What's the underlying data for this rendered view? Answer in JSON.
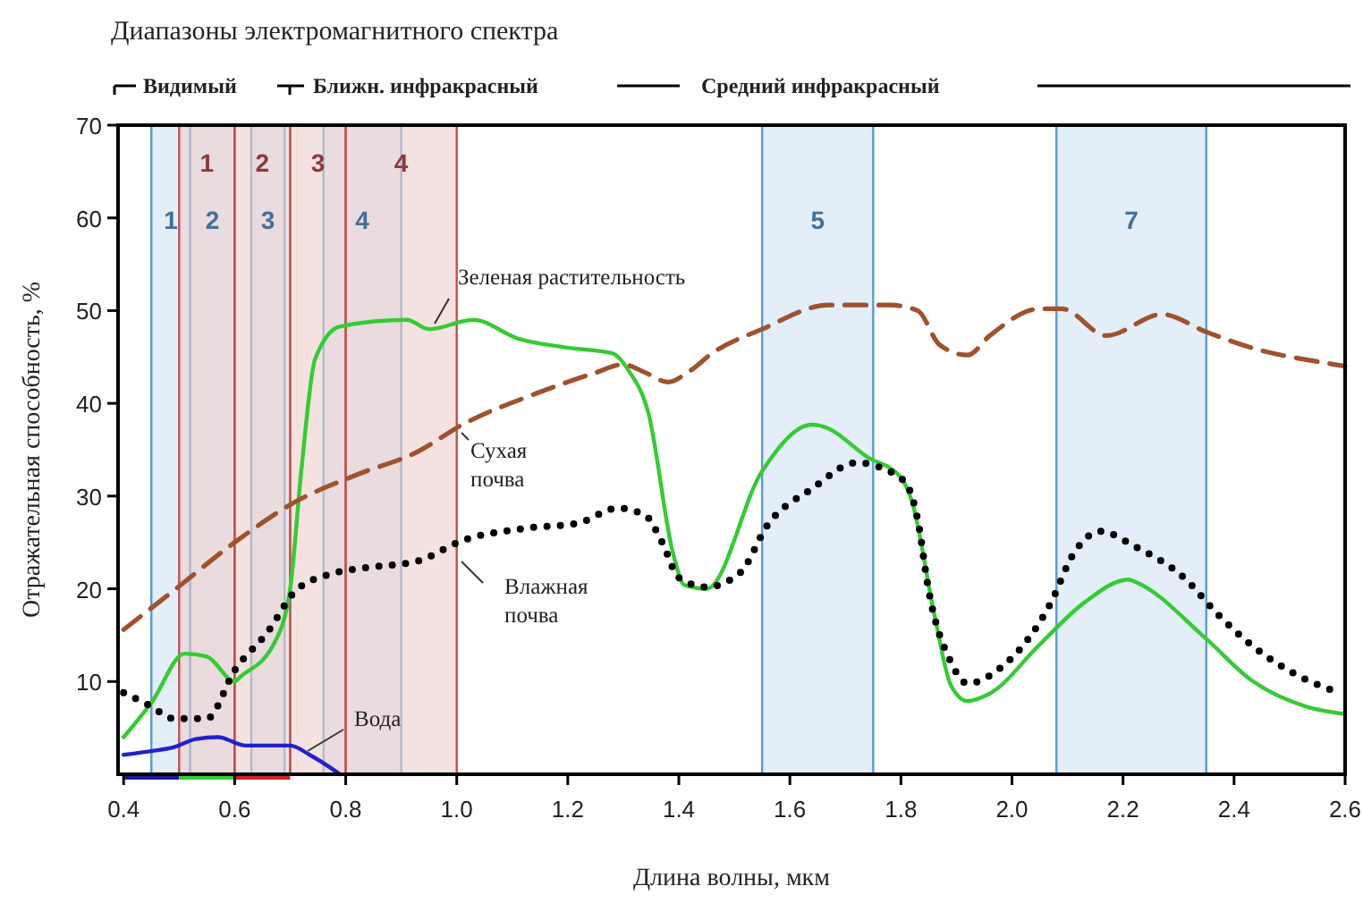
{
  "chart_data": {
    "type": "line",
    "title": "Диапазоны электромагнитного спектра",
    "xlabel": "Длина волны, мкм",
    "ylabel": "Отражательная способность, %",
    "annotations": [
      "Видимый",
      "Ближн. инфракрасный",
      "Средний инфракрасный"
    ],
    "xlim": [
      0.39,
      2.6
    ],
    "ylim": [
      0,
      70
    ],
    "xticks": [
      0.4,
      0.6,
      0.8,
      {
        "value": 1.0,
        "label": "1.0"
      },
      1.2,
      1.4,
      1.6,
      1.8,
      {
        "value": 2.0,
        "label": "2.0"
      },
      2.2,
      2.4,
      2.6
    ],
    "yticks": [
      10,
      20,
      30,
      40,
      50,
      60,
      70
    ],
    "grid": false,
    "marker": "none",
    "bands": [
      {
        "axis": "x",
        "from": 0.45,
        "to": 0.52,
        "label": "1",
        "color": "#5b9bd5"
      },
      {
        "axis": "x",
        "from": 0.52,
        "to": 0.6,
        "label": "2",
        "color": "#5b9bd5"
      },
      {
        "axis": "x",
        "from": 0.63,
        "to": 0.69,
        "label": "3",
        "color": "#5b9bd5"
      },
      {
        "axis": "x",
        "from": 0.76,
        "to": 0.9,
        "label": "4",
        "color": "#5b9bd5"
      },
      {
        "axis": "x",
        "from": 1.55,
        "to": 1.75,
        "label": "5",
        "color": "#5b9bd5"
      },
      {
        "axis": "x",
        "from": 2.08,
        "to": 2.35,
        "label": "7",
        "color": "#5b9bd5"
      },
      {
        "axis": "x",
        "from": 0.5,
        "to": 0.6,
        "label": "1",
        "color": "#c0504d"
      },
      {
        "axis": "x",
        "from": 0.6,
        "to": 0.7,
        "label": "2",
        "color": "#c0504d"
      },
      {
        "axis": "x",
        "from": 0.7,
        "to": 0.8,
        "label": "3",
        "color": "#c0504d"
      },
      {
        "axis": "x",
        "from": 0.8,
        "to": 1.0,
        "label": "4",
        "color": "#c0504d"
      }
    ],
    "series": [
      {
        "name": "Зеленая растительность",
        "color": "#33cc33",
        "line_style": "solid",
        "x": [
          0.4,
          0.45,
          0.51,
          0.55,
          0.6,
          0.61,
          0.67,
          0.7,
          0.72,
          0.745,
          0.79,
          0.91,
          0.95,
          1.03,
          1.11,
          1.2,
          1.28,
          1.31,
          1.345,
          1.39,
          1.41,
          1.45,
          1.55,
          1.64,
          1.66,
          1.74,
          1.8,
          1.82,
          1.86,
          1.89,
          1.92,
          1.96,
          2.05,
          2.13,
          2.21,
          2.22,
          2.35,
          2.43,
          2.53,
          2.6
        ],
        "values": [
          4,
          7.7,
          13,
          12.7,
          10,
          10.5,
          14,
          20,
          32.7,
          44.8,
          48.3,
          49,
          48,
          49,
          47,
          46,
          45.4,
          43.5,
          39,
          23.7,
          20.4,
          20,
          32.7,
          37.7,
          37.5,
          34.2,
          32,
          29.4,
          17.3,
          9.6,
          7.9,
          8.7,
          14,
          18.5,
          21,
          20.8,
          14.6,
          10.2,
          7.3,
          6.5
        ]
      },
      {
        "name": "Сухая почва",
        "color": "#a0522d",
        "line_style": "dashed",
        "x": [
          0.4,
          0.49,
          0.6,
          0.71,
          0.82,
          0.93,
          1.01,
          1.14,
          1.25,
          1.3,
          1.34,
          1.38,
          1.42,
          1.46,
          1.55,
          1.67,
          1.78,
          1.83,
          1.87,
          1.92,
          1.96,
          2.05,
          2.09,
          2.17,
          2.27,
          2.35,
          2.42,
          2.58,
          2.6
        ],
        "values": [
          15.6,
          19.8,
          25,
          29.4,
          32.3,
          34.8,
          37.7,
          41,
          43.3,
          44.2,
          43.3,
          42.3,
          43.5,
          45.4,
          48,
          50.6,
          50.6,
          50,
          46.3,
          45.2,
          47.3,
          50.2,
          50.2,
          47.3,
          49.6,
          47.7,
          46.2,
          44.2,
          44
        ]
      },
      {
        "name": "Влажная почва",
        "color": "#000000",
        "line_style": "dotted",
        "x": [
          0.4,
          0.45,
          0.49,
          0.55,
          0.6,
          0.66,
          0.71,
          0.78,
          0.84,
          0.93,
          1.01,
          1.12,
          1.22,
          1.29,
          1.34,
          1.37,
          1.4,
          1.45,
          1.51,
          1.56,
          1.64,
          1.72,
          1.77,
          1.81,
          1.83,
          1.85,
          1.89,
          1.92,
          1.98,
          2.07,
          2.11,
          2.16,
          2.22,
          2.31,
          2.37,
          2.43,
          2.53,
          2.59
        ],
        "values": [
          8.8,
          7.3,
          6,
          6,
          11.2,
          15.4,
          19.8,
          21.7,
          22.3,
          23,
          25.2,
          26.5,
          27.1,
          28.7,
          27.9,
          25,
          21.2,
          20.2,
          21.7,
          26.9,
          30.8,
          33.6,
          32.9,
          31.3,
          27.5,
          19.8,
          12.1,
          9.8,
          11.5,
          18.5,
          23.7,
          26.2,
          24.6,
          21.2,
          17.3,
          14,
          10.2,
          8.8
        ]
      },
      {
        "name": "Вода",
        "color": "#2222cc",
        "line_style": "solid",
        "x": [
          0.4,
          0.45,
          0.49,
          0.53,
          0.57,
          0.62,
          0.7,
          0.735,
          0.79
        ],
        "values": [
          2.1,
          2.5,
          2.9,
          3.8,
          4,
          3.1,
          3.1,
          2.1,
          0
        ]
      }
    ]
  }
}
